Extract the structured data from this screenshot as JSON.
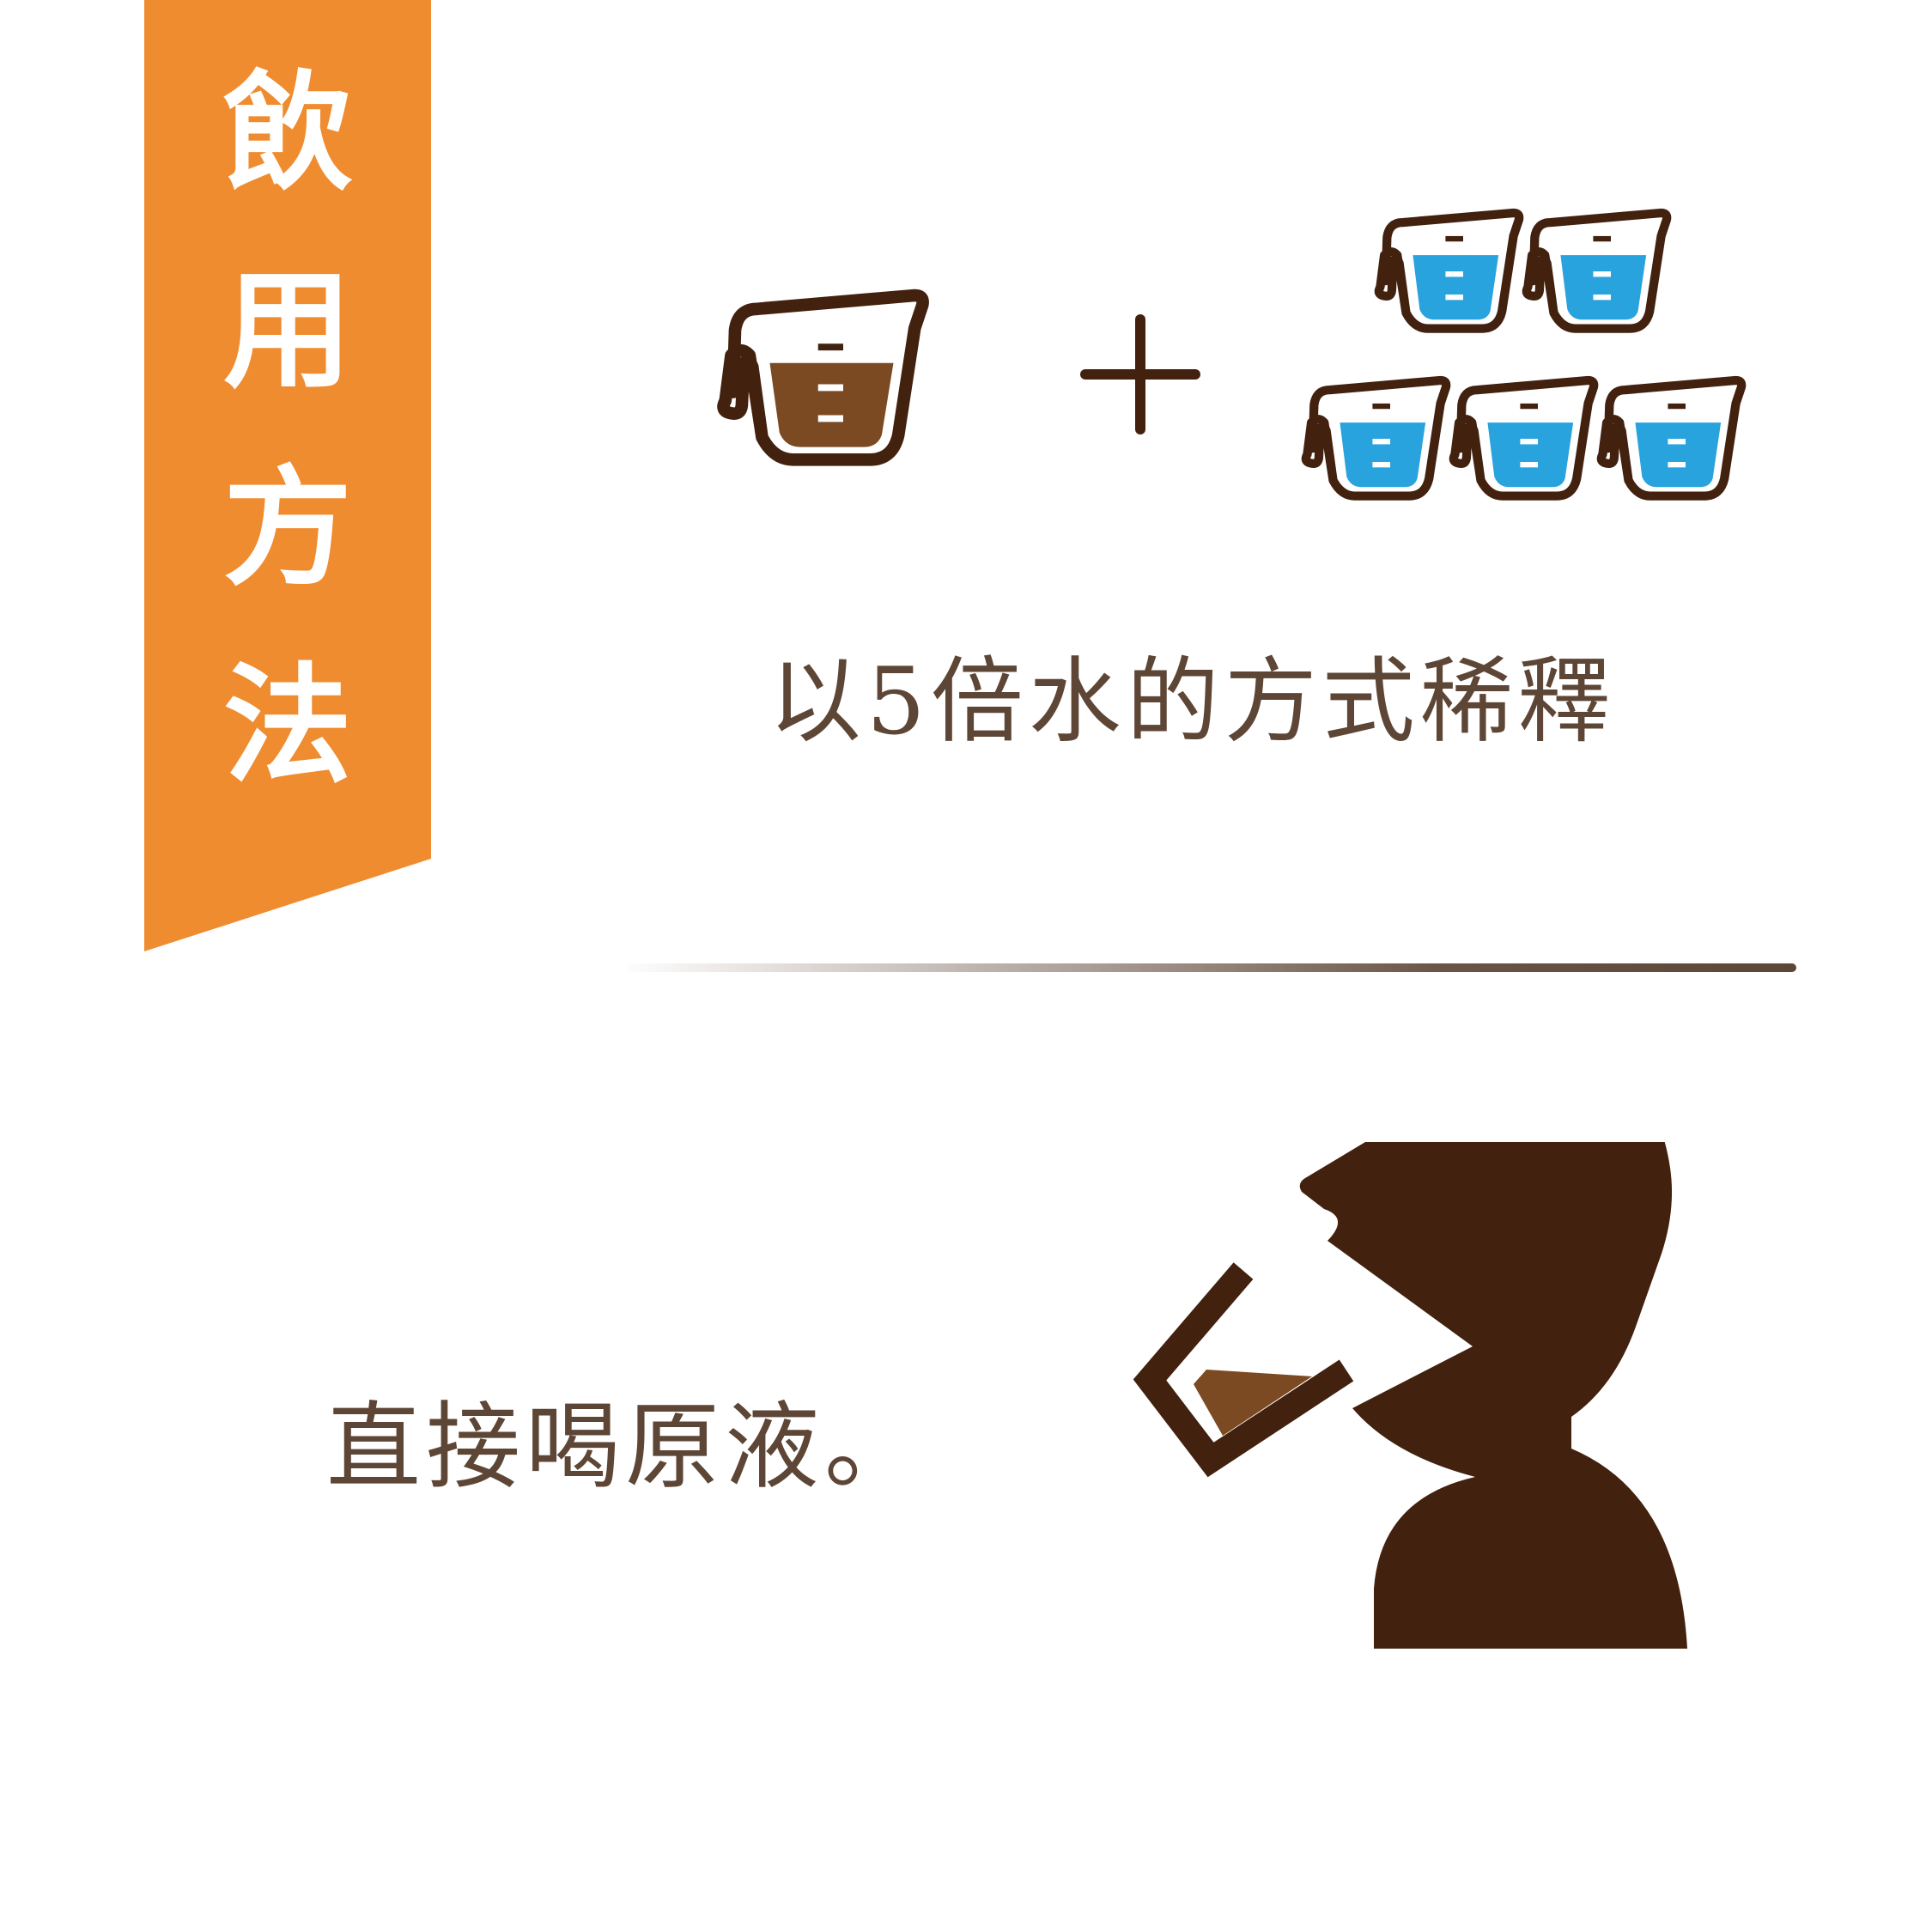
{
  "banner": {
    "title_chars": [
      "飲",
      "用",
      "方",
      "法"
    ],
    "color": "#f08c30"
  },
  "dilution": {
    "concentrate_icon": "measuring-cup-icon-brown",
    "water_icon": "measuring-cup-icon-blue",
    "water_cup_count": 5,
    "text": "以5倍水的方式稀釋"
  },
  "direct": {
    "text": "直接喝原液。",
    "icon": "person-drinking-icon"
  },
  "colors": {
    "dark_brown": "#42210f",
    "liquid_brown": "#7b4a22",
    "water_blue": "#29a3dd",
    "text": "#5e4636"
  }
}
